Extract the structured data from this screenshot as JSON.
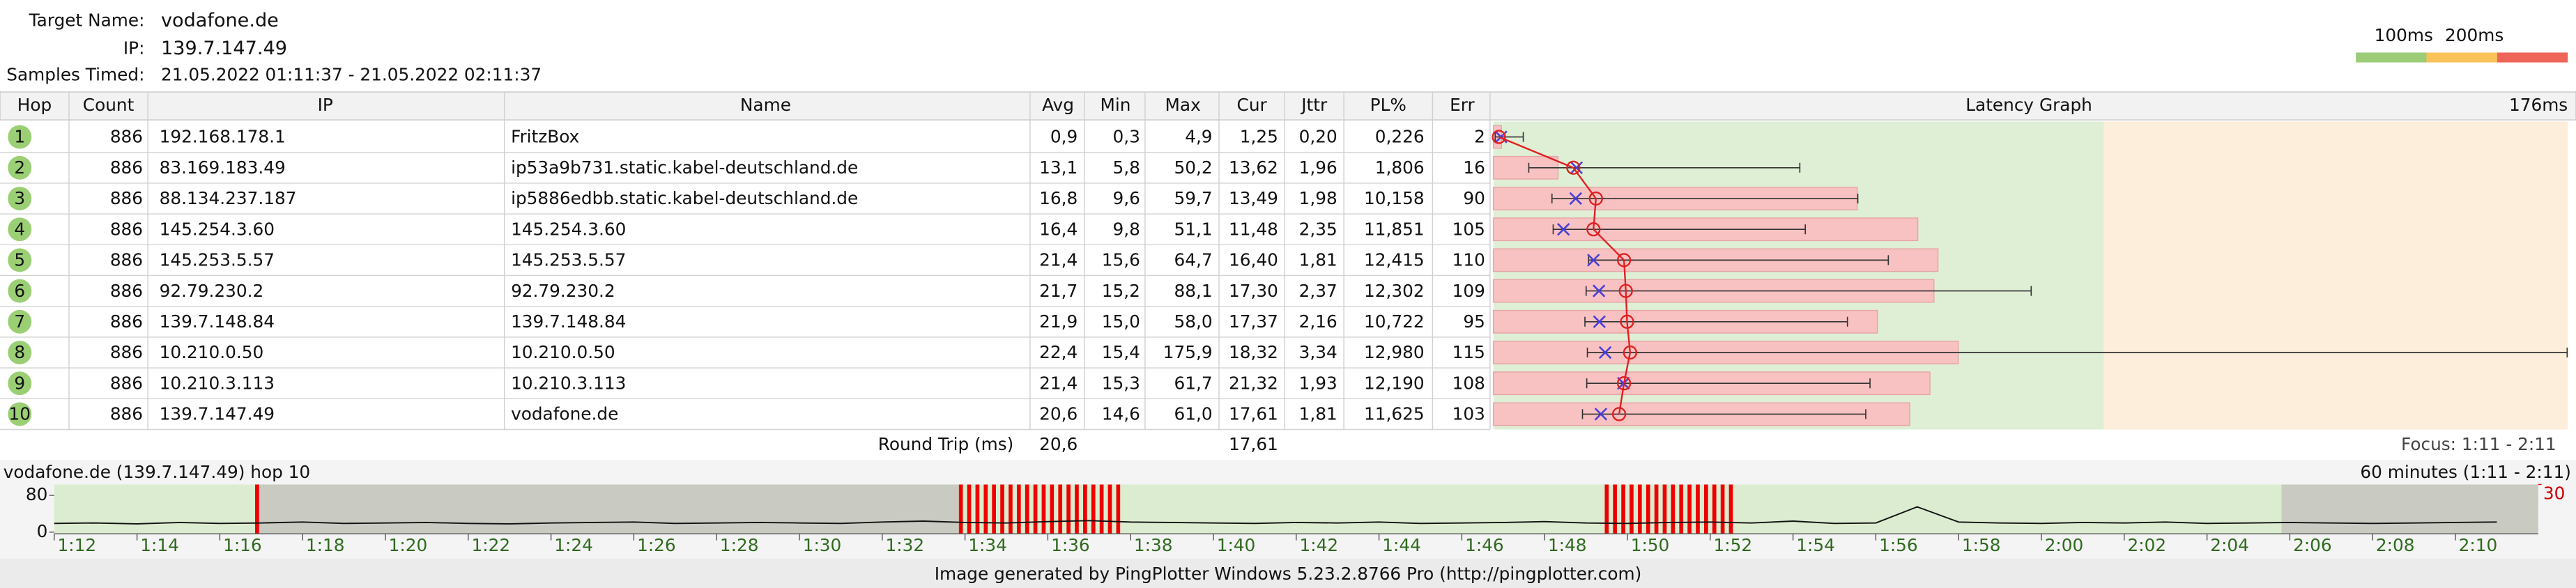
{
  "header": {
    "target_label": "Target Name:",
    "target": "vodafone.de",
    "ip_label": "IP:",
    "ip": "139.7.147.49",
    "samples_label": "Samples Timed:",
    "samples": "21.05.2022 01:11:37 - 21.05.2022 02:11:37"
  },
  "legend": {
    "labels": [
      "100ms",
      "200ms"
    ],
    "colors": [
      "#9ccc78",
      "#f9c35a",
      "#ef6458"
    ]
  },
  "table": {
    "columns": [
      "Hop",
      "Count",
      "IP",
      "Name",
      "Avg",
      "Min",
      "Max",
      "Cur",
      "Jttr",
      "PL%",
      "Err",
      "Latency Graph"
    ],
    "graph_max_label": "176ms",
    "graph_xlim": [
      0,
      176
    ],
    "loss_xlim": [
      0,
      30
    ],
    "zones": [
      {
        "from": 0,
        "to": 100,
        "color": "#dfefd6"
      },
      {
        "from": 100,
        "to": 176,
        "color": "#fdeedb"
      }
    ],
    "rows": [
      {
        "hop": 1,
        "count": 886,
        "ip": "192.168.178.1",
        "name": "FritzBox",
        "avg": {
          "value": 0.9,
          "label": "0,9"
        },
        "min": {
          "value": 0.3,
          "label": "0,3"
        },
        "max": {
          "value": 4.9,
          "label": "4,9"
        },
        "cur": {
          "value": 1.25,
          "label": "1,25"
        },
        "jttr": {
          "value": 0.2,
          "label": "0,20"
        },
        "pl": {
          "value": 0.226,
          "label": "0,226"
        },
        "err": 2
      },
      {
        "hop": 2,
        "count": 886,
        "ip": "83.169.183.49",
        "name": "ip53a9b731.static.kabel-deutschland.de",
        "avg": {
          "value": 13.1,
          "label": "13,1"
        },
        "min": {
          "value": 5.8,
          "label": "5,8"
        },
        "max": {
          "value": 50.2,
          "label": "50,2"
        },
        "cur": {
          "value": 13.62,
          "label": "13,62"
        },
        "jttr": {
          "value": 1.96,
          "label": "1,96"
        },
        "pl": {
          "value": 1.806,
          "label": "1,806"
        },
        "err": 16
      },
      {
        "hop": 3,
        "count": 886,
        "ip": "88.134.237.187",
        "name": "ip5886edbb.static.kabel-deutschland.de",
        "avg": {
          "value": 16.8,
          "label": "16,8"
        },
        "min": {
          "value": 9.6,
          "label": "9,6"
        },
        "max": {
          "value": 59.7,
          "label": "59,7"
        },
        "cur": {
          "value": 13.49,
          "label": "13,49"
        },
        "jttr": {
          "value": 1.98,
          "label": "1,98"
        },
        "pl": {
          "value": 10.158,
          "label": "10,158"
        },
        "err": 90
      },
      {
        "hop": 4,
        "count": 886,
        "ip": "145.254.3.60",
        "name": "145.254.3.60",
        "avg": {
          "value": 16.4,
          "label": "16,4"
        },
        "min": {
          "value": 9.8,
          "label": "9,8"
        },
        "max": {
          "value": 51.1,
          "label": "51,1"
        },
        "cur": {
          "value": 11.48,
          "label": "11,48"
        },
        "jttr": {
          "value": 2.35,
          "label": "2,35"
        },
        "pl": {
          "value": 11.851,
          "label": "11,851"
        },
        "err": 105
      },
      {
        "hop": 5,
        "count": 886,
        "ip": "145.253.5.57",
        "name": "145.253.5.57",
        "avg": {
          "value": 21.4,
          "label": "21,4"
        },
        "min": {
          "value": 15.6,
          "label": "15,6"
        },
        "max": {
          "value": 64.7,
          "label": "64,7"
        },
        "cur": {
          "value": 16.4,
          "label": "16,40"
        },
        "jttr": {
          "value": 1.81,
          "label": "1,81"
        },
        "pl": {
          "value": 12.415,
          "label": "12,415"
        },
        "err": 110
      },
      {
        "hop": 6,
        "count": 886,
        "ip": "92.79.230.2",
        "name": "92.79.230.2",
        "avg": {
          "value": 21.7,
          "label": "21,7"
        },
        "min": {
          "value": 15.2,
          "label": "15,2"
        },
        "max": {
          "value": 88.1,
          "label": "88,1"
        },
        "cur": {
          "value": 17.3,
          "label": "17,30"
        },
        "jttr": {
          "value": 2.37,
          "label": "2,37"
        },
        "pl": {
          "value": 12.302,
          "label": "12,302"
        },
        "err": 109
      },
      {
        "hop": 7,
        "count": 886,
        "ip": "139.7.148.84",
        "name": "139.7.148.84",
        "avg": {
          "value": 21.9,
          "label": "21,9"
        },
        "min": {
          "value": 15.0,
          "label": "15,0"
        },
        "max": {
          "value": 58.0,
          "label": "58,0"
        },
        "cur": {
          "value": 17.37,
          "label": "17,37"
        },
        "jttr": {
          "value": 2.16,
          "label": "2,16"
        },
        "pl": {
          "value": 10.722,
          "label": "10,722"
        },
        "err": 95
      },
      {
        "hop": 8,
        "count": 886,
        "ip": "10.210.0.50",
        "name": "10.210.0.50",
        "avg": {
          "value": 22.4,
          "label": "22,4"
        },
        "min": {
          "value": 15.4,
          "label": "15,4"
        },
        "max": {
          "value": 175.9,
          "label": "175,9"
        },
        "cur": {
          "value": 18.32,
          "label": "18,32"
        },
        "jttr": {
          "value": 3.34,
          "label": "3,34"
        },
        "pl": {
          "value": 12.98,
          "label": "12,980"
        },
        "err": 115
      },
      {
        "hop": 9,
        "count": 886,
        "ip": "10.210.3.113",
        "name": "10.210.3.113",
        "avg": {
          "value": 21.4,
          "label": "21,4"
        },
        "min": {
          "value": 15.3,
          "label": "15,3"
        },
        "max": {
          "value": 61.7,
          "label": "61,7"
        },
        "cur": {
          "value": 21.32,
          "label": "21,32"
        },
        "jttr": {
          "value": 1.93,
          "label": "1,93"
        },
        "pl": {
          "value": 12.19,
          "label": "12,190"
        },
        "err": 108
      },
      {
        "hop": 10,
        "count": 886,
        "ip": "139.7.147.49",
        "name": "vodafone.de",
        "avg": {
          "value": 20.6,
          "label": "20,6"
        },
        "min": {
          "value": 14.6,
          "label": "14,6"
        },
        "max": {
          "value": 61.0,
          "label": "61,0"
        },
        "cur": {
          "value": 17.61,
          "label": "17,61"
        },
        "jttr": {
          "value": 1.81,
          "label": "1,81"
        },
        "pl": {
          "value": 11.625,
          "label": "11,625"
        },
        "err": 103
      }
    ],
    "round_trip": {
      "label": "Round Trip (ms)",
      "avg": {
        "value": 20.6,
        "label": "20,6"
      },
      "cur": {
        "value": 17.61,
        "label": "17,61"
      },
      "focus": "Focus: 1:11 - 2:11"
    }
  },
  "timeline": {
    "title": "vodafone.de (139.7.147.49) hop 10",
    "span": "60 minutes (1:11 - 2:11)",
    "xlim": [
      72,
      132
    ],
    "ylim": [
      0,
      100
    ],
    "yticks": [
      0,
      80
    ],
    "y2lim": [
      0,
      30
    ],
    "y2ticks": [
      30
    ],
    "background": "#dcecd0",
    "shade_color": "#c9cbc2",
    "shaded": [
      [
        76.9,
        93.85
      ],
      [
        125.8,
        132
      ]
    ],
    "xticks": [
      {
        "value": 72,
        "label": "1:12"
      },
      {
        "value": 74,
        "label": "1:14"
      },
      {
        "value": 76,
        "label": "1:16"
      },
      {
        "value": 78,
        "label": "1:18"
      },
      {
        "value": 80,
        "label": "1:20"
      },
      {
        "value": 82,
        "label": "1:22"
      },
      {
        "value": 84,
        "label": "1:24"
      },
      {
        "value": 86,
        "label": "1:26"
      },
      {
        "value": 88,
        "label": "1:28"
      },
      {
        "value": 90,
        "label": "1:30"
      },
      {
        "value": 92,
        "label": "1:32"
      },
      {
        "value": 94,
        "label": "1:34"
      },
      {
        "value": 96,
        "label": "1:36"
      },
      {
        "value": 98,
        "label": "1:38"
      },
      {
        "value": 100,
        "label": "1:40"
      },
      {
        "value": 102,
        "label": "1:42"
      },
      {
        "value": 104,
        "label": "1:44"
      },
      {
        "value": 106,
        "label": "1:46"
      },
      {
        "value": 108,
        "label": "1:48"
      },
      {
        "value": 110,
        "label": "1:50"
      },
      {
        "value": 112,
        "label": "1:52"
      },
      {
        "value": 114,
        "label": "1:54"
      },
      {
        "value": 116,
        "label": "1:56"
      },
      {
        "value": 118,
        "label": "1:58"
      },
      {
        "value": 120,
        "label": "2:00"
      },
      {
        "value": 122,
        "label": "2:02"
      },
      {
        "value": 124,
        "label": "2:04"
      },
      {
        "value": 126,
        "label": "2:06"
      },
      {
        "value": 128,
        "label": "2:08"
      },
      {
        "value": 130,
        "label": "2:10"
      }
    ],
    "latency": {
      "color": "#111111",
      "x": [
        72,
        73,
        74,
        75,
        76,
        77,
        78,
        79,
        80,
        81,
        82,
        83,
        84,
        85,
        86,
        87,
        88,
        89,
        90,
        91,
        92,
        93,
        94,
        95,
        96,
        97,
        98,
        99,
        100,
        101,
        102,
        103,
        104,
        105,
        106,
        107,
        108,
        109,
        110,
        111,
        112,
        113,
        114,
        115,
        116,
        117,
        118,
        119,
        120,
        121,
        122,
        123,
        124,
        125,
        126,
        127,
        128,
        129,
        130,
        131
      ],
      "values": [
        19,
        20,
        18,
        21,
        19,
        20,
        22,
        19,
        20,
        21,
        19,
        18,
        20,
        21,
        22,
        19,
        20,
        21,
        20,
        19,
        22,
        24,
        21,
        20,
        23,
        25,
        22,
        21,
        20,
        19,
        21,
        20,
        22,
        19,
        20,
        21,
        23,
        20,
        19,
        21,
        22,
        20,
        24,
        19,
        20,
        55,
        22,
        20,
        19,
        21,
        20,
        22,
        19,
        20,
        21,
        20,
        19,
        20,
        21,
        22
      ]
    },
    "loss": {
      "color": "#ee0000",
      "x": [
        76.9,
        93.9,
        94.1,
        94.3,
        94.5,
        94.7,
        94.9,
        95.1,
        95.3,
        95.5,
        95.7,
        95.9,
        96.1,
        96.3,
        96.5,
        96.7,
        96.9,
        97.1,
        97.3,
        97.5,
        97.7,
        109.5,
        109.7,
        109.9,
        110.1,
        110.3,
        110.5,
        110.7,
        110.9,
        111.1,
        111.3,
        111.5,
        111.7,
        111.9,
        112.1,
        112.3,
        112.5
      ],
      "values": [
        30,
        30,
        30,
        30,
        30,
        30,
        30,
        30,
        30,
        30,
        30,
        30,
        30,
        30,
        30,
        30,
        30,
        30,
        30,
        30,
        30,
        30,
        30,
        30,
        30,
        30,
        30,
        30,
        30,
        30,
        30,
        30,
        30,
        30,
        30,
        30,
        30
      ]
    }
  },
  "footer": "Image generated by PingPlotter Windows 5.23.2.8766 Pro (http://pingplotter.com)"
}
